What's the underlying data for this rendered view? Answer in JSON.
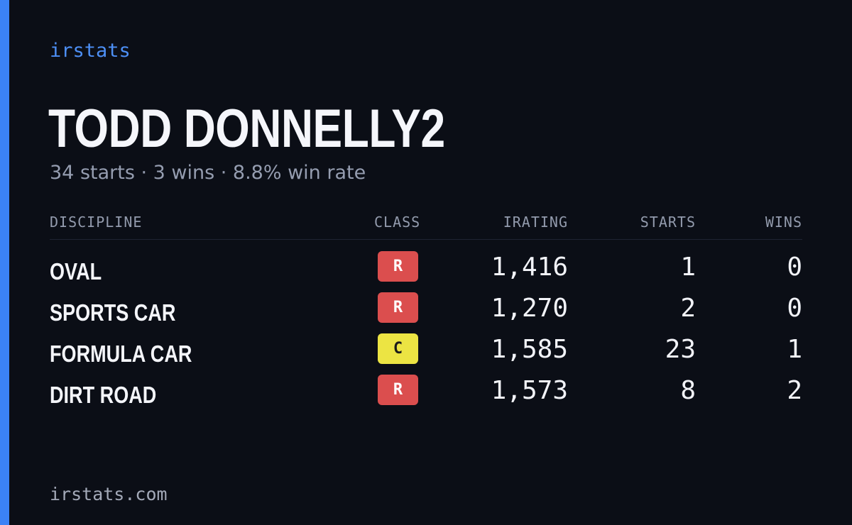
{
  "brand": "irstats",
  "driver_name": "TODD DONNELLY2",
  "summary": "34 starts · 3 wins · 8.8% win rate",
  "columns": {
    "discipline": "DISCIPLINE",
    "class": "CLASS",
    "irating": "IRATING",
    "starts": "STARTS",
    "wins": "WINS"
  },
  "rows": [
    {
      "discipline": "OVAL",
      "class": "R",
      "irating": "1,416",
      "starts": "1",
      "wins": "0"
    },
    {
      "discipline": "SPORTS CAR",
      "class": "R",
      "irating": "1,270",
      "starts": "2",
      "wins": "0"
    },
    {
      "discipline": "FORMULA CAR",
      "class": "C",
      "irating": "1,585",
      "starts": "23",
      "wins": "1"
    },
    {
      "discipline": "DIRT ROAD",
      "class": "R",
      "irating": "1,573",
      "starts": "8",
      "wins": "2"
    }
  ],
  "class_colors": {
    "R": {
      "bg": "#db4e4e",
      "fg": "#ffffff"
    },
    "C": {
      "bg": "#ece443",
      "fg": "#1b1b1b"
    }
  },
  "accent_color": "#3b82f6",
  "footer": "irstats.com"
}
